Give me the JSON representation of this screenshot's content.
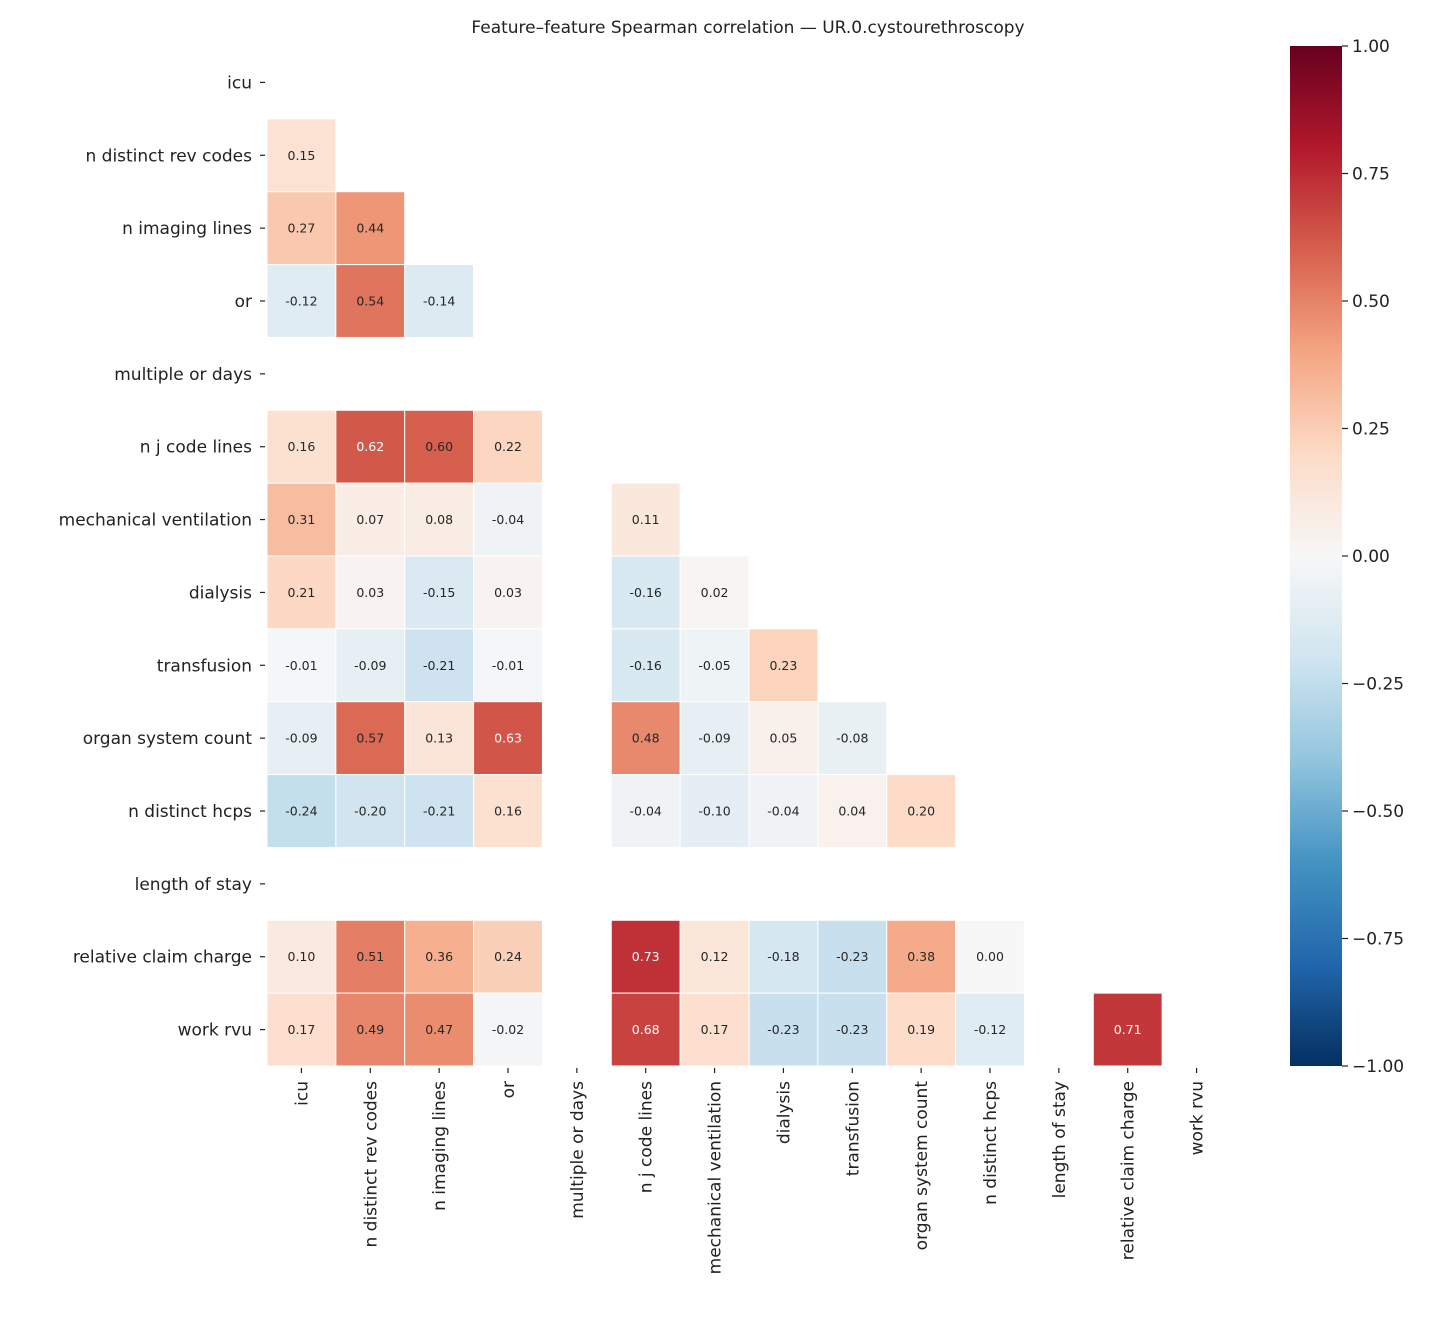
{
  "chart_data": {
    "type": "heatmap",
    "title": "Feature–feature Spearman correlation — UR.0.cystourethroscopy",
    "colormap": "RdBu_r",
    "vlim": [
      -1,
      1
    ],
    "annotated": true,
    "mask": "lower-triangle (upper triangle and diagonal hidden); blank rows/columns are NaN",
    "labels": [
      "icu",
      "n distinct rev codes",
      "n imaging lines",
      "or",
      "multiple or days",
      "n j code lines",
      "mechanical ventilation",
      "dialysis",
      "transfusion",
      "organ system count",
      "n distinct hcps",
      "length of stay",
      "relative claim charge",
      "work rvu"
    ],
    "matrix": [
      [
        null,
        null,
        null,
        null,
        null,
        null,
        null,
        null,
        null,
        null,
        null,
        null,
        null,
        null
      ],
      [
        0.15,
        null,
        null,
        null,
        null,
        null,
        null,
        null,
        null,
        null,
        null,
        null,
        null,
        null
      ],
      [
        0.27,
        0.44,
        null,
        null,
        null,
        null,
        null,
        null,
        null,
        null,
        null,
        null,
        null,
        null
      ],
      [
        -0.12,
        0.54,
        -0.14,
        null,
        null,
        null,
        null,
        null,
        null,
        null,
        null,
        null,
        null,
        null
      ],
      [
        null,
        null,
        null,
        null,
        null,
        null,
        null,
        null,
        null,
        null,
        null,
        null,
        null,
        null
      ],
      [
        0.16,
        0.62,
        0.6,
        0.22,
        null,
        null,
        null,
        null,
        null,
        null,
        null,
        null,
        null,
        null
      ],
      [
        0.31,
        0.07,
        0.08,
        -0.04,
        null,
        0.11,
        null,
        null,
        null,
        null,
        null,
        null,
        null,
        null
      ],
      [
        0.21,
        0.03,
        -0.15,
        0.03,
        null,
        -0.16,
        0.02,
        null,
        null,
        null,
        null,
        null,
        null,
        null
      ],
      [
        -0.01,
        -0.09,
        -0.21,
        -0.01,
        null,
        -0.16,
        -0.05,
        0.23,
        null,
        null,
        null,
        null,
        null,
        null
      ],
      [
        -0.09,
        0.57,
        0.13,
        0.63,
        null,
        0.48,
        -0.09,
        0.05,
        -0.08,
        null,
        null,
        null,
        null,
        null
      ],
      [
        -0.24,
        -0.2,
        -0.21,
        0.16,
        null,
        -0.04,
        -0.1,
        -0.04,
        0.04,
        0.2,
        null,
        null,
        null,
        null
      ],
      [
        null,
        null,
        null,
        null,
        null,
        null,
        null,
        null,
        null,
        null,
        null,
        null,
        null,
        null
      ],
      [
        0.1,
        0.51,
        0.36,
        0.24,
        null,
        0.73,
        0.12,
        -0.18,
        -0.23,
        0.38,
        0.0,
        null,
        null,
        null
      ],
      [
        0.17,
        0.49,
        0.47,
        -0.02,
        null,
        0.68,
        0.17,
        -0.23,
        -0.23,
        0.19,
        -0.12,
        null,
        0.71,
        null
      ]
    ],
    "colorbar_ticks": [
      "1.00",
      "0.75",
      "0.50",
      "0.25",
      "0.00",
      "−0.25",
      "−0.50",
      "−0.75",
      "−1.00"
    ],
    "colorbar_tick_values": [
      1,
      0.75,
      0.5,
      0.25,
      0,
      -0.25,
      -0.5,
      -0.75,
      -1
    ]
  }
}
